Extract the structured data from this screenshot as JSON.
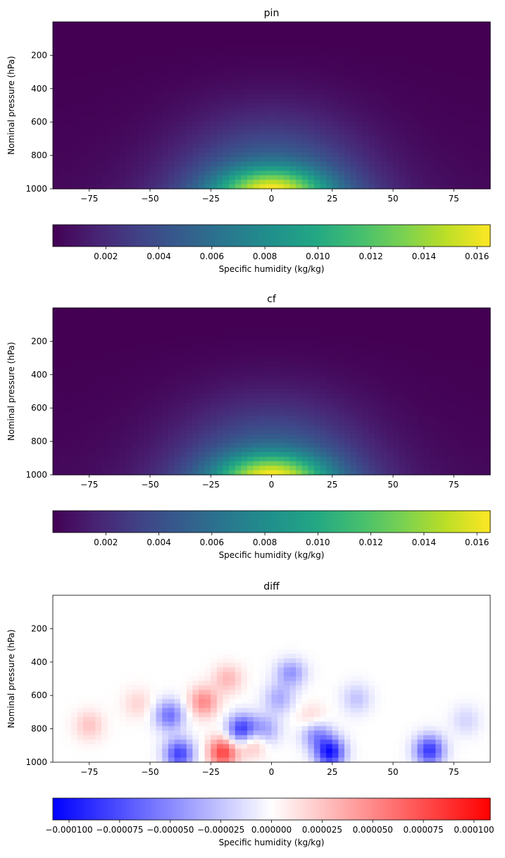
{
  "figure": {
    "panels": [
      {
        "title": "pin",
        "ylabel": "Nominal pressure (hPa)",
        "cbar_label": "Specific humidity (kg/kg)"
      },
      {
        "title": "cf",
        "ylabel": "Nominal pressure (hPa)",
        "cbar_label": "Specific humidity (kg/kg)"
      },
      {
        "title": "diff",
        "ylabel": "Nominal pressure (hPa)",
        "cbar_label": "Specific humidity (kg/kg)"
      }
    ]
  },
  "chart_data": [
    {
      "type": "heatmap",
      "title": "pin",
      "xlabel": "",
      "ylabel": "Nominal pressure (hPa)",
      "xlim": [
        -90,
        90
      ],
      "ylim": [
        1000,
        0
      ],
      "x_ticks": [
        -75,
        -50,
        -25,
        0,
        25,
        50,
        75
      ],
      "y_ticks": [
        200,
        400,
        600,
        800,
        1000
      ],
      "colormap": "viridis",
      "colorbar": {
        "label": "Specific humidity (kg/kg)",
        "range": [
          0.0,
          0.0165
        ],
        "ticks": [
          "0.002",
          "0.004",
          "0.006",
          "0.008",
          "0.010",
          "0.012",
          "0.014",
          "0.016"
        ]
      },
      "field": {
        "max_value": 0.0165,
        "max_at_lat": 0,
        "max_at_pressure": 1000
      }
    },
    {
      "type": "heatmap",
      "title": "cf",
      "xlabel": "",
      "ylabel": "Nominal pressure (hPa)",
      "xlim": [
        -90,
        90
      ],
      "ylim": [
        1000,
        0
      ],
      "x_ticks": [
        -75,
        -50,
        -25,
        0,
        25,
        50,
        75
      ],
      "y_ticks": [
        200,
        400,
        600,
        800,
        1000
      ],
      "colormap": "viridis",
      "colorbar": {
        "label": "Specific humidity (kg/kg)",
        "range": [
          0.0,
          0.0165
        ],
        "ticks": [
          "0.002",
          "0.004",
          "0.006",
          "0.008",
          "0.010",
          "0.012",
          "0.014",
          "0.016"
        ]
      },
      "field": {
        "max_value": 0.0165,
        "max_at_lat": 0,
        "max_at_pressure": 1000
      }
    },
    {
      "type": "heatmap",
      "title": "diff",
      "xlabel": "",
      "ylabel": "Nominal pressure (hPa)",
      "xlim": [
        -90,
        90
      ],
      "ylim": [
        1000,
        0
      ],
      "x_ticks": [
        -75,
        -50,
        -25,
        0,
        25,
        50,
        75
      ],
      "y_ticks": [
        200,
        400,
        600,
        800,
        1000
      ],
      "colormap": "bwr",
      "colorbar": {
        "label": "Specific humidity (kg/kg)",
        "range": [
          -0.000108,
          0.000108
        ],
        "ticks": [
          "−0.000100",
          "−0.000075",
          "−0.000050",
          "−0.000025",
          "0.000000",
          "0.000025",
          "0.000050",
          "0.000075",
          "0.000100"
        ]
      },
      "anomalies": [
        {
          "lat": -12,
          "p": 810,
          "value": -9.5e-05
        },
        {
          "lat": 24,
          "p": 940,
          "value": -0.0001
        },
        {
          "lat": 18,
          "p": 820,
          "value": -6e-05
        },
        {
          "lat": 65,
          "p": 930,
          "value": -8.5e-05
        },
        {
          "lat": -38,
          "p": 950,
          "value": -8e-05
        },
        {
          "lat": -42,
          "p": 720,
          "value": -6e-05
        },
        {
          "lat": 3,
          "p": 620,
          "value": -3.5e-05
        },
        {
          "lat": 8,
          "p": 460,
          "value": -4.5e-05
        },
        {
          "lat": -3,
          "p": 810,
          "value": -4.5e-05
        },
        {
          "lat": -20,
          "p": 940,
          "value": 8e-05
        },
        {
          "lat": -28,
          "p": 640,
          "value": 5e-05
        },
        {
          "lat": -18,
          "p": 500,
          "value": 3e-05
        },
        {
          "lat": -75,
          "p": 780,
          "value": 2.5e-05
        },
        {
          "lat": 17,
          "p": 760,
          "value": 3.5e-05
        },
        {
          "lat": -8,
          "p": 870,
          "value": 5e-05
        },
        {
          "lat": 35,
          "p": 620,
          "value": -2.5e-05
        },
        {
          "lat": 80,
          "p": 750,
          "value": -1.8e-05
        },
        {
          "lat": -55,
          "p": 650,
          "value": 1.8e-05
        }
      ]
    }
  ]
}
